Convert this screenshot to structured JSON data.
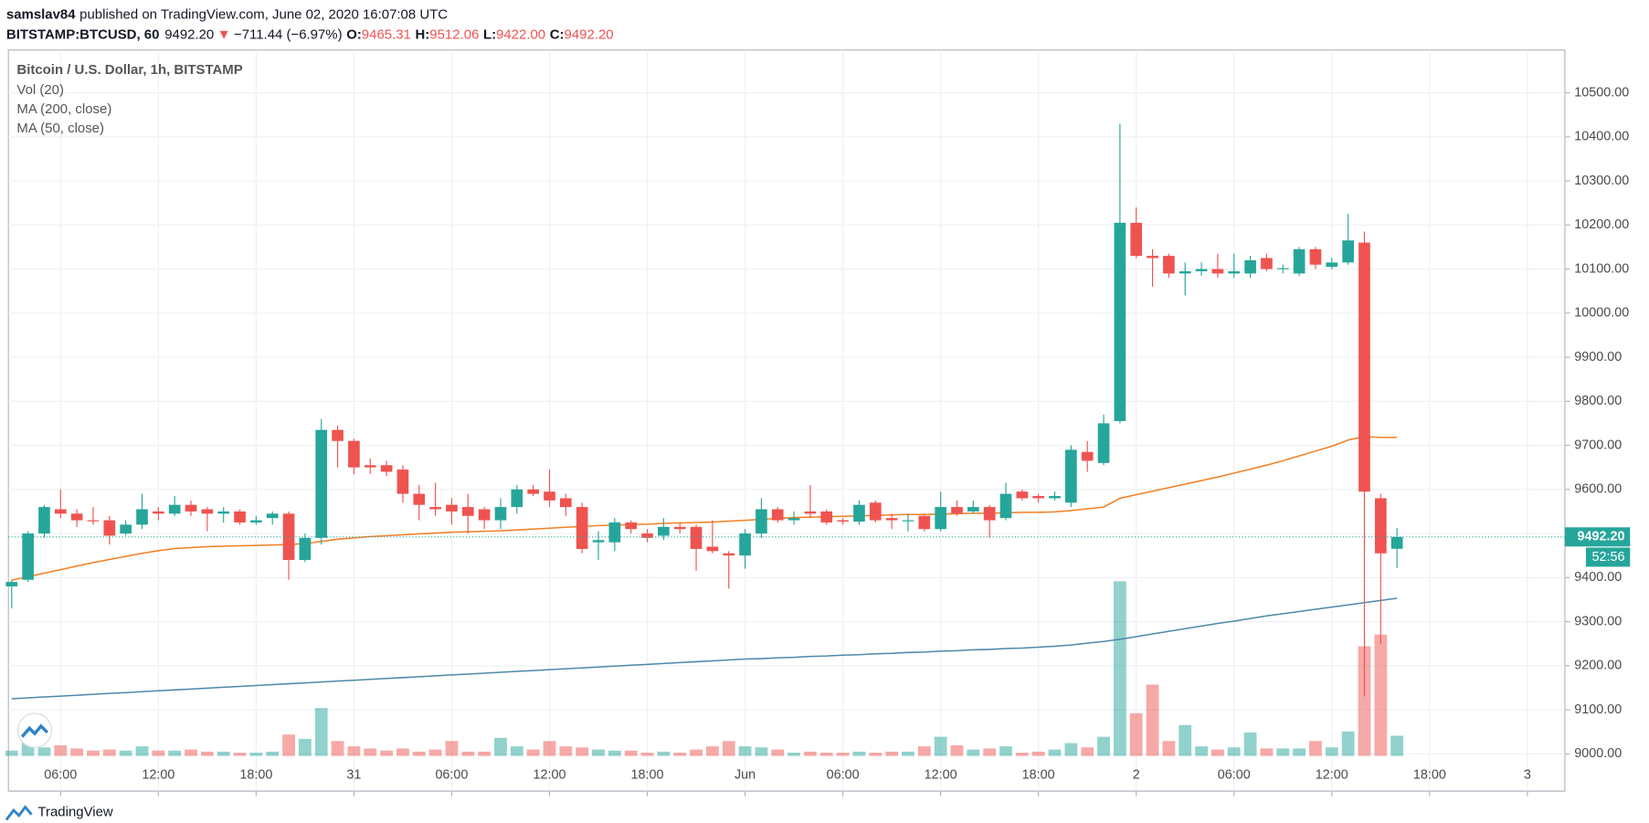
{
  "header": {
    "author": "samslav84",
    "published": "published on TradingView.com, June 02, 2020 16:07:08 UTC",
    "symbol": "BITSTAMP:BTCUSD, 60",
    "last": "9492.20",
    "arrow": "▼",
    "change": "−711.44 (−6.97%)",
    "ohlc": [
      {
        "label": "O:",
        "value": "9465.31"
      },
      {
        "label": "H:",
        "value": "9512.06"
      },
      {
        "label": "L:",
        "value": "9422.00"
      },
      {
        "label": "C:",
        "value": "9492.20"
      }
    ],
    "countdown": "52:56",
    "brand": "TradingView"
  },
  "chart_data": {
    "type": "candlestick",
    "title": "Bitcoin / U.S. Dollar, 1h, BITSTAMP",
    "up_color": "#26a69a",
    "down_color": "#ef5350",
    "grid": true,
    "x": [
      3,
      4,
      5,
      6,
      7,
      8,
      9,
      10,
      11,
      12,
      13,
      14,
      15,
      16,
      17,
      18,
      19,
      20,
      21,
      22,
      23,
      24,
      25,
      26,
      27,
      28,
      29,
      30,
      31,
      32,
      33,
      34,
      35,
      36,
      37,
      38,
      39,
      40,
      41,
      42,
      43,
      44,
      45,
      46,
      47,
      48,
      49,
      50,
      51,
      52,
      53,
      54,
      55,
      56,
      57,
      58,
      59,
      60,
      61,
      62,
      63,
      64,
      65,
      66,
      67,
      68,
      69,
      70,
      71,
      72,
      73,
      74,
      75,
      76,
      77,
      78,
      79,
      80,
      81,
      82,
      83,
      84,
      85,
      86,
      87,
      88
    ],
    "open": [
      9380,
      9395,
      9500,
      9555,
      9545,
      9530,
      9530,
      9500,
      9520,
      9550,
      9545,
      9565,
      9555,
      9545,
      9550,
      9525,
      9535,
      9545,
      9440,
      9490,
      9735,
      9710,
      9655,
      9655,
      9645,
      9590,
      9560,
      9565,
      9560,
      9555,
      9530,
      9560,
      9600,
      9595,
      9580,
      9560,
      9480,
      9480,
      9525,
      9500,
      9495,
      9515,
      9515,
      9470,
      9455,
      9450,
      9500,
      9555,
      9530,
      9550,
      9550,
      9530,
      9527,
      9570,
      9535,
      9528,
      9540,
      9510,
      9560,
      9550,
      9560,
      9535,
      9595,
      9585,
      9580,
      9570,
      9685,
      9660,
      9755,
      10205,
      10130,
      10130,
      10090,
      10095,
      10100,
      10090,
      10090,
      10125,
      10100,
      10090,
      10145,
      10105,
      10115,
      10160,
      9580,
      9465.31
    ],
    "high": [
      9395,
      9505,
      9565,
      9600,
      9555,
      9560,
      9540,
      9530,
      9590,
      9560,
      9585,
      9575,
      9560,
      9560,
      9555,
      9540,
      9550,
      9550,
      9500,
      9760,
      9745,
      9715,
      9670,
      9665,
      9655,
      9610,
      9615,
      9580,
      9590,
      9560,
      9580,
      9610,
      9610,
      9645,
      9590,
      9570,
      9505,
      9535,
      9530,
      9510,
      9535,
      9525,
      9520,
      9530,
      9460,
      9510,
      9580,
      9560,
      9550,
      9610,
      9555,
      9535,
      9575,
      9575,
      9545,
      9545,
      9545,
      9595,
      9575,
      9575,
      9565,
      9615,
      9600,
      9590,
      9595,
      9700,
      9710,
      9770,
      10430,
      10240,
      10145,
      10135,
      10115,
      10115,
      10135,
      10135,
      10130,
      10135,
      10110,
      10150,
      10150,
      10125,
      10225,
      10185,
      9590,
      9512.06
    ],
    "low": [
      9330,
      9390,
      9490,
      9535,
      9515,
      9520,
      9475,
      9495,
      9510,
      9530,
      9540,
      9540,
      9505,
      9525,
      9520,
      9520,
      9520,
      9395,
      9435,
      9475,
      9650,
      9635,
      9635,
      9630,
      9570,
      9530,
      9540,
      9520,
      9500,
      9510,
      9510,
      9545,
      9585,
      9560,
      9540,
      9455,
      9440,
      9460,
      9500,
      9480,
      9485,
      9500,
      9415,
      9455,
      9375,
      9420,
      9490,
      9525,
      9520,
      9535,
      9520,
      9520,
      9520,
      9525,
      9510,
      9505,
      9505,
      9505,
      9540,
      9545,
      9490,
      9530,
      9575,
      9570,
      9575,
      9560,
      9640,
      9655,
      9750,
      10125,
      10060,
      10080,
      10040,
      10085,
      10080,
      10080,
      10080,
      10095,
      10090,
      10085,
      10100,
      10100,
      10110,
      9130,
      9250,
      9422
    ],
    "close": [
      9390,
      9500,
      9560,
      9545,
      9530,
      9528,
      9495,
      9520,
      9555,
      9545,
      9565,
      9550,
      9545,
      9550,
      9525,
      9530,
      9545,
      9440,
      9490,
      9735,
      9710,
      9650,
      9650,
      9640,
      9590,
      9565,
      9555,
      9550,
      9540,
      9530,
      9560,
      9600,
      9590,
      9575,
      9560,
      9465,
      9485,
      9525,
      9510,
      9490,
      9515,
      9510,
      9465,
      9460,
      9450,
      9500,
      9555,
      9530,
      9535,
      9545,
      9525,
      9527,
      9565,
      9530,
      9530,
      9530,
      9510,
      9560,
      9545,
      9560,
      9530,
      9590,
      9580,
      9580,
      9585,
      9690,
      9665,
      9750,
      10205,
      10130,
      10125,
      10090,
      10095,
      10100,
      10090,
      10095,
      10120,
      10100,
      10102,
      10145,
      10110,
      10115,
      10165,
      9595,
      9455,
      9492.2
    ],
    "volume": {
      "name": "Vol (20)",
      "values": [
        50,
        130,
        80,
        100,
        70,
        50,
        60,
        50,
        90,
        50,
        50,
        60,
        40,
        40,
        30,
        30,
        40,
        200,
        160,
        450,
        140,
        90,
        70,
        50,
        70,
        40,
        60,
        140,
        40,
        40,
        170,
        90,
        60,
        140,
        90,
        80,
        60,
        50,
        50,
        30,
        40,
        30,
        60,
        90,
        140,
        90,
        80,
        60,
        30,
        40,
        30,
        30,
        40,
        30,
        40,
        40,
        90,
        180,
        100,
        60,
        70,
        90,
        30,
        40,
        60,
        120,
        80,
        180,
        1640,
        400,
        670,
        140,
        290,
        90,
        60,
        80,
        220,
        70,
        70,
        70,
        140,
        80,
        230,
        1030,
        1140,
        190
      ]
    },
    "series": [
      {
        "name": "MA (200, close)",
        "color": "#4c89ab",
        "values": [
          9125,
          9127,
          9129,
          9131,
          9133,
          9135,
          9137,
          9139,
          9141,
          9143,
          9145,
          9147,
          9149,
          9151,
          9153,
          9155,
          9157,
          9159,
          9161,
          9163,
          9165,
          9167,
          9169,
          9171,
          9173,
          9175,
          9177,
          9179,
          9181,
          9183,
          9185,
          9187,
          9189,
          9191,
          9193,
          9195,
          9197,
          9199,
          9201,
          9203,
          9205,
          9207,
          9209,
          9211,
          9213,
          9215,
          9216,
          9218,
          9219,
          9221,
          9222,
          9224,
          9225,
          9227,
          9228,
          9230,
          9231,
          9233,
          9234,
          9236,
          9237,
          9239,
          9240,
          9242,
          9244,
          9247,
          9251,
          9255,
          9260,
          9266,
          9272,
          9278,
          9284,
          9290,
          9296,
          9301,
          9307,
          9313,
          9318,
          9323,
          9328,
          9333,
          9338,
          9343,
          9348,
          9353
        ]
      },
      {
        "name": "MA (50, close)",
        "color": "#f57f20",
        "values": [
          9394,
          9402,
          9410,
          9418,
          9426,
          9434,
          9441,
          9448,
          9455,
          9461,
          9466,
          9468,
          9470,
          9471,
          9472,
          9473,
          9474,
          9475,
          9477,
          9482,
          9487,
          9490,
          9493,
          9495,
          9497,
          9499,
          9501,
          9503,
          9504,
          9505,
          9506,
          9508,
          9510,
          9512,
          9514,
          9516,
          9518,
          9519,
          9520,
          9521,
          9523,
          9524,
          9525,
          9526,
          9528,
          9530,
          9532,
          9534,
          9536,
          9537,
          9538,
          9539,
          9540,
          9541,
          9542,
          9543,
          9543,
          9544,
          9545,
          9546,
          9546,
          9547,
          9548,
          9548,
          9549,
          9552,
          9556,
          9560,
          9580,
          9588,
          9596,
          9604,
          9612,
          9620,
          9628,
          9637,
          9646,
          9655,
          9665,
          9676,
          9687,
          9698,
          9712,
          9720,
          9718,
          9718
        ]
      }
    ],
    "xlim": [
      2.8,
      98.3
    ],
    "xticks": [
      {
        "value": 6,
        "label": "06:00"
      },
      {
        "value": 12,
        "label": "12:00"
      },
      {
        "value": 18,
        "label": "18:00"
      },
      {
        "value": 24,
        "label": "31"
      },
      {
        "value": 30,
        "label": "06:00"
      },
      {
        "value": 36,
        "label": "12:00"
      },
      {
        "value": 42,
        "label": "18:00"
      },
      {
        "value": 48,
        "label": "Jun"
      },
      {
        "value": 54,
        "label": "06:00"
      },
      {
        "value": 60,
        "label": "12:00"
      },
      {
        "value": 66,
        "label": "18:00"
      },
      {
        "value": 72,
        "label": "2"
      },
      {
        "value": 78,
        "label": "06:00"
      },
      {
        "value": 84,
        "label": "12:00"
      },
      {
        "value": 90,
        "label": "18:00"
      },
      {
        "value": 96,
        "label": "3"
      }
    ],
    "ylim": [
      8988,
      10597
    ],
    "yticks": [
      {
        "value": 9000,
        "label": "9000.00"
      },
      {
        "value": 9100,
        "label": "9100.00"
      },
      {
        "value": 9200,
        "label": "9200.00"
      },
      {
        "value": 9300,
        "label": "9300.00"
      },
      {
        "value": 9400,
        "label": "9400.00"
      },
      {
        "value": 9500,
        "label": "9500.00"
      },
      {
        "value": 9600,
        "label": "9600.00"
      },
      {
        "value": 9700,
        "label": "9700.00"
      },
      {
        "value": 9800,
        "label": "9800.00"
      },
      {
        "value": 9900,
        "label": "9900.00"
      },
      {
        "value": 10000,
        "label": "10000.00"
      },
      {
        "value": 10100,
        "label": "10100.00"
      },
      {
        "value": 10200,
        "label": "10200.00"
      },
      {
        "value": 10300,
        "label": "10300.00"
      },
      {
        "value": 10400,
        "label": "10400.00"
      },
      {
        "value": 10500,
        "label": "10500.00"
      }
    ]
  }
}
